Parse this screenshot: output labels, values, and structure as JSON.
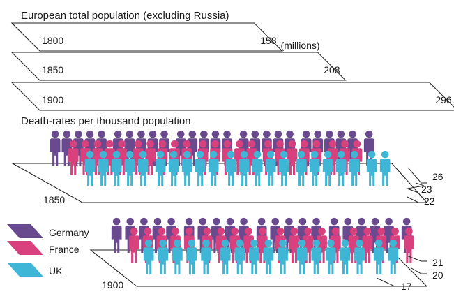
{
  "chart_data": [
    {
      "type": "bar",
      "title": "European total population (excluding Russia)",
      "unit": "(millions)",
      "categories": [
        "1800",
        "1850",
        "1900"
      ],
      "values": [
        158,
        208,
        296
      ],
      "value_labels": [
        "158",
        "208",
        "296"
      ]
    },
    {
      "type": "bar",
      "title": "Death-rates per thousand population",
      "series_names": [
        "Germany",
        "France",
        "UK"
      ],
      "colors": {
        "Germany": "#6a4a8e",
        "France": "#d8417e",
        "UK": "#3fb6d6"
      },
      "groups": [
        {
          "year": "1850",
          "values": {
            "Germany": 26,
            "France": 23,
            "UK": 22
          },
          "value_labels": [
            "26",
            "23",
            "22"
          ]
        },
        {
          "year": "1900",
          "values": {
            "Germany": 21,
            "France": 20,
            "UK": 17
          },
          "value_labels": [
            "21",
            "20",
            "17"
          ]
        }
      ]
    }
  ],
  "legend": [
    {
      "label": "Germany",
      "color": "#6a4a8e"
    },
    {
      "label": "France",
      "color": "#d8417e"
    },
    {
      "label": "UK",
      "color": "#3fb6d6"
    }
  ]
}
